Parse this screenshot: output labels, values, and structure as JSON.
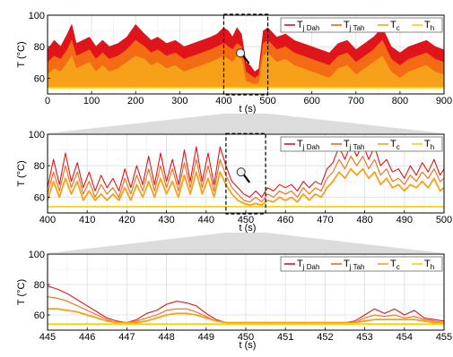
{
  "colors": {
    "tj_dah": "#e0141b",
    "tj_tah": "#f36b12",
    "tc": "#f7a11a",
    "th": "#f5d40a",
    "grid": "#dcdcdc",
    "zoom_box": "#000000",
    "zoom_shade": "#bfbfbf"
  },
  "legend": [
    {
      "key": "tj_dah",
      "main": "T",
      "sub": "j Dah"
    },
    {
      "key": "tj_tah",
      "main": "T",
      "sub": "j Tah"
    },
    {
      "key": "tc",
      "main": "T",
      "sub": "c"
    },
    {
      "key": "th",
      "main": "T",
      "sub": "h"
    }
  ],
  "chart_data": [
    {
      "type": "line",
      "panel": "top",
      "xlabel": "t (s)",
      "ylabel": "T (°C)",
      "xlim": [
        0,
        900
      ],
      "ylim": [
        50,
        100
      ],
      "xticks": [
        0,
        100,
        200,
        300,
        400,
        500,
        600,
        700,
        800,
        900
      ],
      "yticks": [
        60,
        80,
        100
      ],
      "grid": true,
      "legend_position": "top-right",
      "zoom_window": [
        400,
        500
      ],
      "magnifier_icon": "magnifier-icon",
      "x": [
        0,
        15,
        30,
        45,
        55,
        65,
        80,
        95,
        110,
        125,
        140,
        160,
        180,
        200,
        220,
        235,
        250,
        270,
        290,
        310,
        330,
        350,
        370,
        385,
        400,
        410,
        420,
        430,
        440,
        450,
        460,
        470,
        480,
        490,
        500,
        520,
        540,
        560,
        580,
        600,
        620,
        640,
        660,
        680,
        700,
        720,
        740,
        760,
        780,
        800,
        820,
        840,
        860,
        880,
        900
      ],
      "series": [
        {
          "name": "T j Dah",
          "color_key": "tj_dah",
          "values": [
            78,
            84,
            80,
            88,
            94,
            82,
            84,
            86,
            80,
            84,
            80,
            82,
            86,
            94,
            88,
            84,
            86,
            82,
            84,
            80,
            82,
            84,
            86,
            88,
            92,
            90,
            86,
            92,
            88,
            70,
            68,
            64,
            66,
            90,
            92,
            86,
            88,
            84,
            82,
            80,
            78,
            76,
            82,
            84,
            78,
            82,
            86,
            92,
            80,
            76,
            80,
            82,
            84,
            80,
            78
          ]
        },
        {
          "name": "T j Tah",
          "color_key": "tj_tah",
          "values": [
            70,
            74,
            72,
            78,
            84,
            74,
            76,
            78,
            72,
            76,
            72,
            74,
            78,
            84,
            80,
            76,
            78,
            74,
            76,
            72,
            74,
            76,
            78,
            80,
            82,
            80,
            78,
            82,
            80,
            64,
            62,
            60,
            62,
            82,
            84,
            78,
            80,
            76,
            74,
            72,
            70,
            68,
            74,
            76,
            70,
            74,
            78,
            84,
            72,
            68,
            72,
            74,
            76,
            72,
            70
          ]
        },
        {
          "name": "T c",
          "color_key": "tc",
          "values": [
            62,
            66,
            64,
            70,
            74,
            66,
            68,
            70,
            64,
            68,
            64,
            66,
            70,
            74,
            72,
            68,
            70,
            66,
            68,
            64,
            66,
            68,
            70,
            72,
            74,
            72,
            70,
            74,
            72,
            58,
            57,
            56,
            57,
            74,
            76,
            70,
            72,
            68,
            66,
            64,
            62,
            60,
            66,
            68,
            62,
            66,
            70,
            74,
            64,
            60,
            64,
            66,
            68,
            64,
            62
          ]
        },
        {
          "name": "T h",
          "color_key": "th",
          "values": [
            54,
            54,
            54,
            54,
            54,
            54,
            54,
            54,
            54,
            54,
            54,
            54,
            54,
            54,
            54,
            54,
            54,
            54,
            54,
            54,
            54,
            54,
            54,
            54,
            54,
            54,
            54,
            54,
            54,
            54,
            54,
            54,
            54,
            54,
            54,
            54,
            54,
            54,
            54,
            54,
            54,
            54,
            54,
            54,
            54,
            54,
            54,
            54,
            54,
            54,
            54,
            54,
            54,
            54,
            54
          ]
        }
      ]
    },
    {
      "type": "line",
      "panel": "middle",
      "xlabel": "t (s)",
      "ylabel": "T (°C)",
      "xlim": [
        400,
        500
      ],
      "ylim": [
        50,
        100
      ],
      "xticks": [
        400,
        410,
        420,
        430,
        440,
        450,
        460,
        470,
        480,
        490,
        500
      ],
      "yticks": [
        60,
        80,
        100
      ],
      "grid": true,
      "legend_position": "top-right",
      "zoom_window": [
        445,
        455
      ],
      "magnifier_icon": "magnifier-icon",
      "x": [
        400,
        401.5,
        403,
        404.5,
        406,
        407.5,
        409,
        410.5,
        412,
        413.5,
        415,
        416.5,
        418,
        419.5,
        421,
        422.5,
        424,
        425.5,
        427,
        428.5,
        430,
        431.5,
        433,
        434.5,
        436,
        437.5,
        439,
        440.5,
        442,
        443.5,
        445,
        446.5,
        448,
        449.5,
        451,
        452.5,
        454,
        455.5,
        457,
        458.5,
        460,
        461.5,
        463,
        464.5,
        466,
        467.5,
        469,
        470.5,
        472,
        473.5,
        475,
        476.5,
        478,
        479.5,
        481,
        482.5,
        484,
        485.5,
        487,
        488.5,
        490,
        491.5,
        493,
        494.5,
        496,
        497.5,
        499,
        500
      ],
      "series": [
        {
          "name": "T j Dah",
          "color_key": "tj_dah",
          "values": [
            66,
            84,
            68,
            88,
            70,
            82,
            66,
            76,
            64,
            74,
            66,
            72,
            64,
            78,
            66,
            80,
            68,
            86,
            68,
            88,
            70,
            84,
            68,
            90,
            70,
            92,
            70,
            88,
            68,
            92,
            80,
            70,
            66,
            62,
            60,
            64,
            60,
            66,
            64,
            68,
            66,
            68,
            64,
            70,
            66,
            70,
            68,
            78,
            82,
            92,
            84,
            94,
            86,
            94,
            84,
            92,
            80,
            84,
            76,
            78,
            72,
            80,
            74,
            82,
            76,
            84,
            74,
            78
          ]
        },
        {
          "name": "T j Tah",
          "color_key": "tj_tah",
          "values": [
            62,
            76,
            64,
            80,
            66,
            76,
            62,
            70,
            60,
            68,
            62,
            66,
            60,
            72,
            62,
            74,
            64,
            78,
            64,
            80,
            66,
            78,
            64,
            82,
            66,
            84,
            66,
            80,
            64,
            84,
            74,
            66,
            62,
            58,
            57,
            60,
            57,
            62,
            60,
            64,
            62,
            64,
            60,
            66,
            62,
            66,
            64,
            72,
            76,
            84,
            78,
            86,
            80,
            86,
            78,
            84,
            74,
            78,
            70,
            72,
            68,
            74,
            70,
            76,
            72,
            78,
            70,
            72
          ]
        },
        {
          "name": "T c",
          "color_key": "tc",
          "values": [
            58,
            70,
            60,
            72,
            62,
            70,
            58,
            64,
            58,
            62,
            58,
            62,
            58,
            66,
            58,
            68,
            60,
            70,
            60,
            72,
            62,
            70,
            60,
            74,
            62,
            76,
            62,
            72,
            60,
            76,
            68,
            62,
            58,
            56,
            55,
            56,
            55,
            58,
            57,
            60,
            58,
            60,
            57,
            62,
            58,
            62,
            60,
            66,
            70,
            76,
            72,
            78,
            74,
            78,
            72,
            76,
            68,
            72,
            66,
            68,
            64,
            68,
            66,
            70,
            66,
            72,
            64,
            66
          ]
        },
        {
          "name": "T h",
          "color_key": "th",
          "values": [
            54,
            54,
            54,
            54,
            54,
            54,
            54,
            54,
            54,
            54,
            54,
            54,
            54,
            54,
            54,
            54,
            54,
            54,
            54,
            54,
            54,
            54,
            54,
            54,
            54,
            54,
            54,
            54,
            54,
            54,
            54,
            54,
            54,
            54,
            54,
            54,
            54,
            54,
            54,
            54,
            54,
            54,
            54,
            54,
            54,
            54,
            54,
            54,
            54,
            54,
            54,
            54,
            54,
            54,
            54,
            54,
            54,
            54,
            54,
            54,
            54,
            54,
            54,
            54,
            54,
            54,
            54,
            54
          ]
        }
      ]
    },
    {
      "type": "line",
      "panel": "bottom",
      "xlabel": "t (s)",
      "ylabel": "T (°C)",
      "xlim": [
        445,
        455
      ],
      "ylim": [
        50,
        100
      ],
      "xticks": [
        445,
        446,
        447,
        448,
        449,
        450,
        451,
        452,
        453,
        454,
        455
      ],
      "yticks": [
        60,
        80,
        100
      ],
      "grid": true,
      "legend_position": "top-right",
      "x": [
        445,
        445.25,
        445.5,
        445.75,
        446,
        446.25,
        446.5,
        446.75,
        447,
        447.25,
        447.5,
        447.75,
        448,
        448.25,
        448.5,
        448.75,
        449,
        449.25,
        449.5,
        449.75,
        450,
        450.25,
        450.5,
        450.75,
        451,
        451.25,
        451.5,
        451.75,
        452,
        452.25,
        452.5,
        452.75,
        453,
        453.25,
        453.5,
        453.75,
        454,
        454.25,
        454.5,
        454.75,
        455
      ],
      "series": [
        {
          "name": "T j Dah",
          "color_key": "tj_dah",
          "values": [
            79,
            77,
            74,
            70,
            66,
            62,
            58,
            56,
            55,
            57,
            61,
            63,
            67,
            69,
            68,
            66,
            61,
            57,
            55,
            54,
            55,
            55,
            55,
            54,
            54,
            54,
            55,
            55,
            55,
            54,
            55,
            56,
            60,
            64,
            61,
            64,
            60,
            63,
            58,
            57,
            56
          ]
        },
        {
          "name": "T j Tah",
          "color_key": "tj_tah",
          "values": [
            72,
            71,
            69,
            66,
            63,
            60,
            57,
            55,
            55,
            56,
            58,
            60,
            63,
            64,
            64,
            62,
            59,
            56,
            55,
            54,
            55,
            55,
            55,
            54,
            54,
            54,
            55,
            55,
            55,
            54,
            55,
            55,
            58,
            60,
            59,
            60,
            58,
            59,
            57,
            56,
            55
          ]
        },
        {
          "name": "T c",
          "color_key": "tc",
          "values": [
            64,
            64,
            63,
            62,
            60,
            58,
            56,
            55,
            55,
            55,
            56,
            58,
            60,
            61,
            61,
            60,
            58,
            56,
            55,
            55,
            55,
            55,
            55,
            55,
            55,
            55,
            55,
            55,
            55,
            55,
            55,
            55,
            56,
            57,
            57,
            57,
            57,
            57,
            56,
            55,
            55
          ]
        },
        {
          "name": "T h",
          "color_key": "th",
          "values": [
            54,
            54,
            54,
            54,
            54,
            54,
            54,
            54,
            54,
            54,
            54,
            54,
            54,
            54,
            54,
            54,
            54,
            54,
            54,
            54,
            54,
            54,
            54,
            54,
            54,
            54,
            54,
            54,
            54,
            54,
            54,
            54,
            54,
            54,
            54,
            54,
            54,
            54,
            54,
            54,
            54
          ]
        }
      ]
    }
  ]
}
